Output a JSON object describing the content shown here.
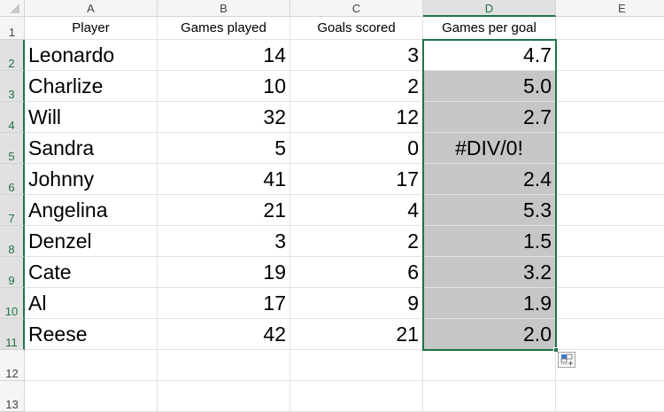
{
  "columns": [
    "A",
    "B",
    "C",
    "D",
    "E"
  ],
  "rows": [
    "1",
    "2",
    "3",
    "4",
    "5",
    "6",
    "7",
    "8",
    "9",
    "10",
    "11",
    "12",
    "13"
  ],
  "headers": [
    "Player",
    "Games played",
    "Goals scored",
    "Games per goal"
  ],
  "data": [
    [
      "Leonardo",
      "14",
      "3",
      "4.7"
    ],
    [
      "Charlize",
      "10",
      "2",
      "5.0"
    ],
    [
      "Will",
      "32",
      "12",
      "2.7"
    ],
    [
      "Sandra",
      "5",
      "0",
      "#DIV/0!"
    ],
    [
      "Johnny",
      "41",
      "17",
      "2.4"
    ],
    [
      "Angelina",
      "21",
      "4",
      "5.3"
    ],
    [
      "Denzel",
      "3",
      "2",
      "1.5"
    ],
    [
      "Cate",
      "19",
      "6",
      "3.2"
    ],
    [
      "Al",
      "17",
      "9",
      "1.9"
    ],
    [
      "Reese",
      "42",
      "21",
      "2.0"
    ]
  ],
  "selection": {
    "range": "D2:D11",
    "active_cell": "D2",
    "accent": "#217346",
    "fill": "#c6c6c6"
  },
  "icons": {
    "quick_analysis": "quick-analysis-icon"
  }
}
